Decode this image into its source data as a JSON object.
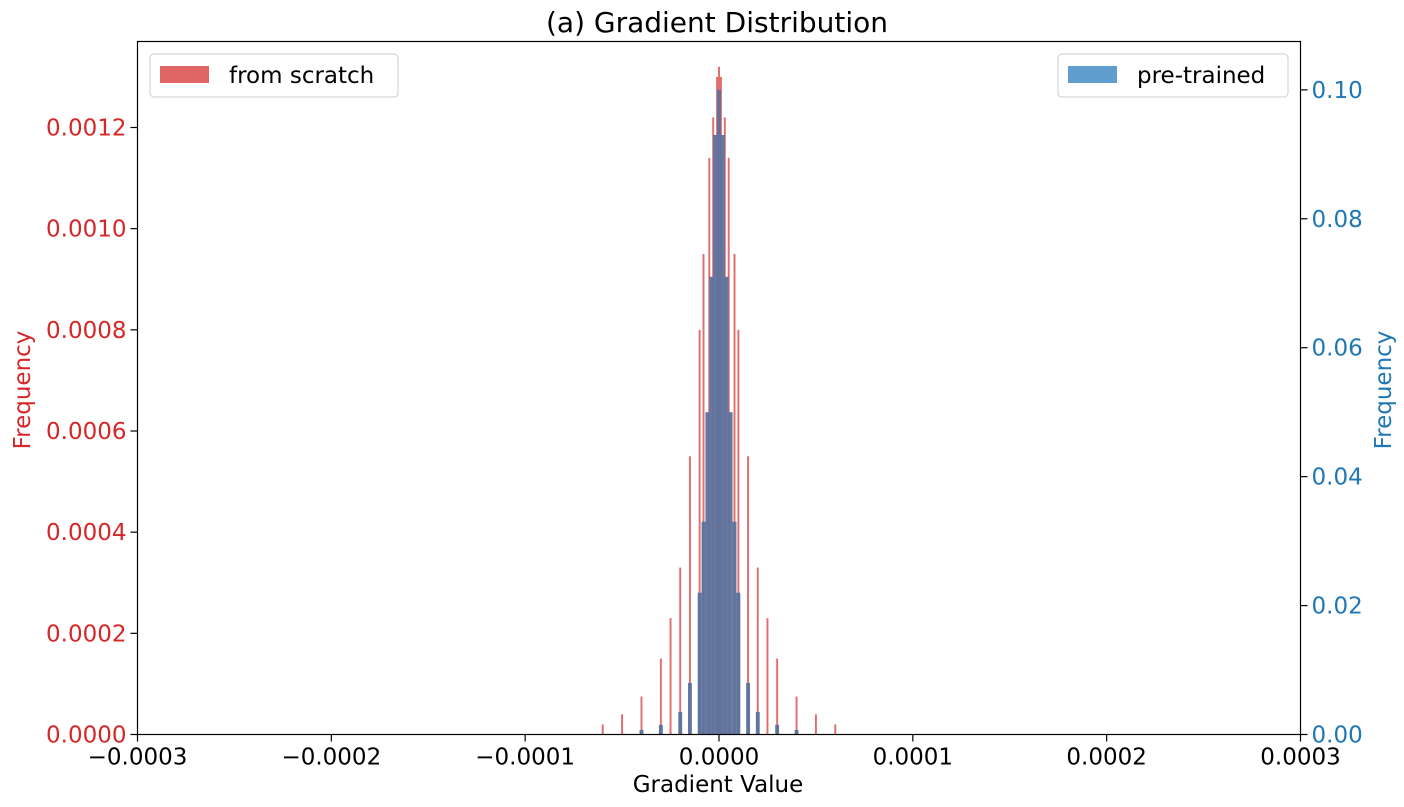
{
  "chart_data": {
    "type": "bar",
    "title": "(a) Gradient Distribution",
    "xlabel": "Gradient Value",
    "ylabel_left": "Frequency",
    "ylabel_right": "Frequency",
    "xlim": [
      -0.0003,
      0.0003
    ],
    "ylim_left": [
      0,
      0.00137
    ],
    "ylim_right": [
      0,
      0.1075
    ],
    "xticks": [
      {
        "value": -0.0003,
        "label": "−0.0003"
      },
      {
        "value": -0.0002,
        "label": "−0.0002"
      },
      {
        "value": -0.0001,
        "label": "−0.0001"
      },
      {
        "value": 0,
        "label": "0.0000"
      },
      {
        "value": 0.0001,
        "label": "0.0001"
      },
      {
        "value": 0.0002,
        "label": "0.0002"
      },
      {
        "value": 0.0003,
        "label": "0.0003"
      }
    ],
    "yticks_left": [
      {
        "value": 0,
        "label": "0.0000"
      },
      {
        "value": 0.0002,
        "label": "0.0002"
      },
      {
        "value": 0.0004,
        "label": "0.0004"
      },
      {
        "value": 0.0006,
        "label": "0.0006"
      },
      {
        "value": 0.0008,
        "label": "0.0008"
      },
      {
        "value": 0.001,
        "label": "0.0010"
      },
      {
        "value": 0.0012,
        "label": "0.0012"
      }
    ],
    "yticks_right": [
      {
        "value": 0,
        "label": "0.00"
      },
      {
        "value": 0.02,
        "label": "0.02"
      },
      {
        "value": 0.04,
        "label": "0.04"
      },
      {
        "value": 0.06,
        "label": "0.06"
      },
      {
        "value": 0.08,
        "label": "0.08"
      },
      {
        "value": 0.1,
        "label": "0.10"
      }
    ],
    "series": [
      {
        "name": "from scratch",
        "axis": "left",
        "color": "#d62728",
        "bin_width": 1e-06,
        "x": [
          -6e-05,
          -5e-05,
          -4e-05,
          -3e-05,
          -2.5e-05,
          -2e-05,
          -1.5e-05,
          -1e-05,
          -8e-06,
          -5e-06,
          -3e-06,
          -1e-06,
          0,
          1e-06,
          3e-06,
          5e-06,
          8e-06,
          1e-05,
          1.5e-05,
          2e-05,
          2.5e-05,
          3e-05,
          4e-05,
          5e-05,
          6e-05
        ],
        "values": [
          2e-05,
          4e-05,
          7.5e-05,
          0.00015,
          0.00023,
          0.00033,
          0.00055,
          0.0008,
          0.00095,
          0.00114,
          0.00122,
          0.0013,
          0.00132,
          0.0013,
          0.00122,
          0.00114,
          0.00095,
          0.0008,
          0.00055,
          0.00033,
          0.00023,
          0.00015,
          7.5e-05,
          4e-05,
          2e-05
        ]
      },
      {
        "name": "pre-trained",
        "axis": "right",
        "color": "#1f77b4",
        "bin_width": 2e-06,
        "x": [
          -4e-05,
          -3e-05,
          -2e-05,
          -1.5e-05,
          -1e-05,
          -8e-06,
          -6e-06,
          -4e-06,
          -2e-06,
          0,
          2e-06,
          4e-06,
          6e-06,
          8e-06,
          1e-05,
          1.5e-05,
          2e-05,
          3e-05,
          4e-05
        ],
        "values": [
          0.0007,
          0.0015,
          0.0035,
          0.008,
          0.022,
          0.033,
          0.05,
          0.071,
          0.093,
          0.1,
          0.093,
          0.071,
          0.05,
          0.033,
          0.022,
          0.008,
          0.0035,
          0.0015,
          0.0007
        ]
      }
    ],
    "legend": [
      {
        "label": "from scratch",
        "position": "top-left"
      },
      {
        "label": "pre-trained",
        "position": "top-right"
      }
    ],
    "colors": {
      "left_axis": "#d62728",
      "right_axis": "#1f77b4",
      "scratch_bar": "#e06565",
      "pretrained_bar": "#5a729e",
      "frame": "#000000"
    }
  }
}
